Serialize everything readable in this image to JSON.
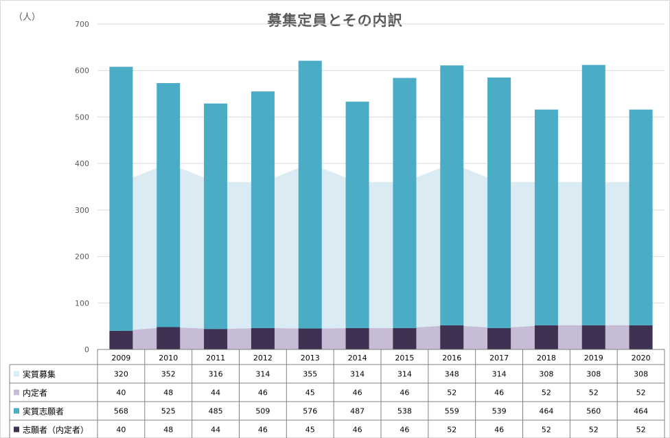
{
  "chart_data": {
    "type": "bar",
    "title": "募集定員とその内訳",
    "unit_label": "（人）",
    "ylim": [
      0,
      700
    ],
    "yticks": [
      "0",
      "100",
      "200",
      "300",
      "400",
      "500",
      "600",
      "700"
    ],
    "categories": [
      "2009",
      "2010",
      "2011",
      "2012",
      "2013",
      "2014",
      "2015",
      "2016",
      "2017",
      "2018",
      "2019",
      "2020"
    ],
    "grid": true,
    "legend": "data-table",
    "series": [
      {
        "name": "実質募集",
        "kind": "area",
        "stack": "A",
        "color": "#daebf3",
        "values": [
          320,
          352,
          316,
          314,
          355,
          314,
          314,
          348,
          314,
          308,
          308,
          308
        ]
      },
      {
        "name": "内定者",
        "kind": "area",
        "stack": "A",
        "color": "#c7bcd6",
        "values": [
          40,
          48,
          44,
          46,
          45,
          46,
          46,
          52,
          46,
          52,
          52,
          52
        ]
      },
      {
        "name": "実質志願者",
        "kind": "bar",
        "stack": "B",
        "color": "#4bacc6",
        "values": [
          568,
          525,
          485,
          509,
          576,
          487,
          538,
          559,
          539,
          464,
          560,
          464
        ]
      },
      {
        "name": "志願者（内定者）",
        "kind": "bar",
        "stack": "B",
        "color": "#3f3151",
        "values": [
          40,
          48,
          44,
          46,
          45,
          46,
          46,
          52,
          46,
          52,
          52,
          52
        ]
      }
    ]
  }
}
